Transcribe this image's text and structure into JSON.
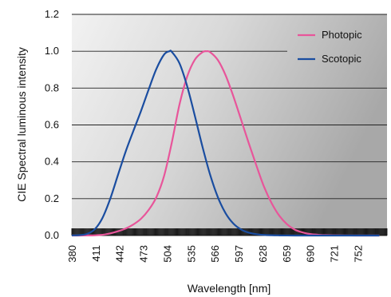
{
  "chart_data": {
    "type": "line",
    "title": "",
    "xlabel": "Wavelength [nm]",
    "ylabel": "CIE Spectral luminous intensity",
    "xlim": [
      380,
      790
    ],
    "ylim": [
      0,
      1.2
    ],
    "x_ticks": [
      380,
      411,
      442,
      473,
      504,
      535,
      566,
      597,
      628,
      659,
      690,
      721,
      752
    ],
    "y_ticks": [
      "0.0",
      "0.2",
      "0.4",
      "0.6",
      "0.8",
      "1.0",
      "1.2"
    ],
    "grid": "horizontal",
    "legend_position": "top-right",
    "colors": {
      "Photopic": "#e8559a",
      "Scotopic": "#1a4da0"
    },
    "series": [
      {
        "name": "Photopic",
        "x": [
          380,
          390,
          400,
          410,
          420,
          430,
          440,
          450,
          460,
          470,
          480,
          490,
          500,
          510,
          520,
          530,
          540,
          550,
          555,
          560,
          570,
          580,
          590,
          600,
          610,
          620,
          630,
          640,
          650,
          660,
          670,
          680,
          690,
          700,
          710,
          720,
          730,
          740,
          750,
          760,
          770,
          780
        ],
        "y": [
          0.0,
          0.0001,
          0.0004,
          0.0012,
          0.004,
          0.0116,
          0.023,
          0.038,
          0.06,
          0.091,
          0.139,
          0.208,
          0.323,
          0.503,
          0.71,
          0.862,
          0.954,
          0.995,
          1.0,
          0.995,
          0.952,
          0.87,
          0.757,
          0.631,
          0.503,
          0.381,
          0.265,
          0.175,
          0.107,
          0.061,
          0.032,
          0.017,
          0.0082,
          0.0041,
          0.0021,
          0.001,
          0.0005,
          0.0003,
          0.0001,
          0.0001,
          0.0,
          0.0
        ]
      },
      {
        "name": "Scotopic",
        "x": [
          380,
          390,
          400,
          410,
          420,
          430,
          440,
          450,
          460,
          470,
          480,
          490,
          500,
          507,
          510,
          520,
          530,
          540,
          550,
          560,
          570,
          580,
          590,
          600,
          610,
          620,
          630,
          640,
          650,
          660,
          670,
          680,
          690,
          700,
          710,
          720,
          730,
          740,
          750,
          760,
          770,
          780
        ],
        "y": [
          0.0006,
          0.0022,
          0.0093,
          0.0348,
          0.0966,
          0.1998,
          0.3281,
          0.455,
          0.567,
          0.676,
          0.793,
          0.904,
          0.982,
          1.0,
          0.997,
          0.935,
          0.811,
          0.65,
          0.481,
          0.3288,
          0.2076,
          0.1212,
          0.0655,
          0.0332,
          0.0159,
          0.0074,
          0.0033,
          0.0015,
          0.0007,
          0.0003,
          0.0001,
          0.0001,
          0.0,
          0.0,
          0.0,
          0.0,
          0.0,
          0.0,
          0.0,
          0.0,
          0.0,
          0.0
        ]
      }
    ]
  }
}
